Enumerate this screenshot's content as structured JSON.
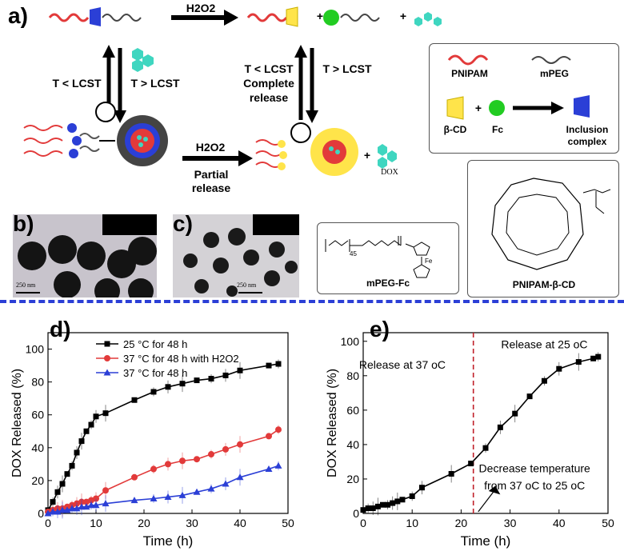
{
  "panels": {
    "a": "a)",
    "b": "b)",
    "c": "c)",
    "d": "d)",
    "e": "e)"
  },
  "scheme": {
    "h2o2_top": "H2O2",
    "h2o2_bottom": "H2O2",
    "left_down": "T < LCST",
    "left_up": "T > LCST",
    "mid_down": "T < LCST",
    "mid_down_2": "Complete",
    "mid_down_3": "release",
    "mid_up": "T > LCST",
    "partial_1": "Partial",
    "partial_2": "release",
    "plus": "+",
    "dox": "DOX"
  },
  "legend_box": {
    "pnipam": "PNIPAM",
    "mpeg": "mPEG",
    "bcd": "β-CD",
    "fc": "Fc",
    "plus": "+",
    "inclusion_1": "Inclusion",
    "inclusion_2": "complex"
  },
  "structures": {
    "mpeg_fc": "mPEG-Fc",
    "mpeg_sub": "45",
    "fe": "Fe",
    "pnipam_bcd": "PNIPAM-β-CD"
  },
  "tem": {
    "scale_b": "250 nm",
    "scale_c": "250 nm"
  },
  "colors": {
    "red": "#e23a3a",
    "blue": "#2b3fd6",
    "yellow": "#ffe44a",
    "green": "#22cc22",
    "teal": "#3fd6c0",
    "divider": "#2b3fd6"
  },
  "chart_data": [
    {
      "type": "line",
      "panel": "d",
      "xlabel": "Time (h)",
      "ylabel": "DOX Released (%)",
      "xlim": [
        0,
        50
      ],
      "ylim": [
        0,
        110
      ],
      "xticks": [
        0,
        10,
        20,
        30,
        40,
        50
      ],
      "yticks": [
        0,
        20,
        40,
        60,
        80,
        100
      ],
      "legend_position": "top-left",
      "series": [
        {
          "name": "25 °C for 48 h",
          "color": "#000000",
          "marker": "square",
          "x": [
            0,
            1,
            2,
            3,
            4,
            5,
            6,
            7,
            8,
            9,
            10,
            12,
            18,
            22,
            25,
            28,
            31,
            34,
            37,
            40,
            46,
            48
          ],
          "y": [
            2,
            7,
            13,
            18,
            24,
            29,
            37,
            44,
            50,
            54,
            59,
            61,
            69,
            74,
            77,
            79,
            81,
            82,
            84,
            87,
            90,
            91
          ]
        },
        {
          "name": "37 °C for 48 h with H2O2",
          "color": "#e23a3a",
          "marker": "circle",
          "x": [
            0,
            1,
            2,
            3,
            4,
            5,
            6,
            7,
            8,
            9,
            10,
            12,
            18,
            22,
            25,
            28,
            31,
            34,
            37,
            40,
            46,
            48
          ],
          "y": [
            1,
            2,
            3,
            3,
            4,
            5,
            6,
            7,
            7,
            8,
            9,
            14,
            22,
            27,
            30,
            32,
            33,
            36,
            39,
            42,
            47,
            51
          ]
        },
        {
          "name": "37 °C for 48 h",
          "color": "#2b3fd6",
          "marker": "triangle",
          "x": [
            0,
            1,
            2,
            3,
            4,
            5,
            6,
            7,
            8,
            9,
            10,
            12,
            18,
            22,
            25,
            28,
            31,
            34,
            37,
            40,
            46,
            48
          ],
          "y": [
            0,
            1,
            1,
            2,
            2,
            3,
            3,
            4,
            4,
            5,
            5,
            6,
            8,
            9,
            10,
            11,
            13,
            15,
            18,
            22,
            27,
            29
          ]
        }
      ]
    },
    {
      "type": "line",
      "panel": "e",
      "xlabel": "Time (h)",
      "ylabel": "DOX Released (%)",
      "xlim": [
        0,
        50
      ],
      "ylim": [
        0,
        105
      ],
      "xticks": [
        0,
        10,
        20,
        30,
        40,
        50
      ],
      "yticks": [
        0,
        20,
        40,
        60,
        80,
        100
      ],
      "vline_x": 22.5,
      "annotations": [
        "Release at 37 oC",
        "Release at 25 oC",
        "Decrease temperature",
        "from 37 oC to 25 oC"
      ],
      "series": [
        {
          "name": "",
          "color": "#000000",
          "marker": "square",
          "x": [
            0,
            1,
            2,
            3,
            4,
            5,
            6,
            7,
            8,
            10,
            12,
            18,
            22,
            25,
            28,
            31,
            34,
            37,
            40,
            44,
            47,
            48
          ],
          "y": [
            2,
            3,
            3,
            4,
            5,
            5,
            6,
            7,
            8,
            10,
            15,
            23,
            29,
            38,
            50,
            58,
            68,
            77,
            84,
            88,
            90,
            91
          ]
        }
      ]
    }
  ]
}
